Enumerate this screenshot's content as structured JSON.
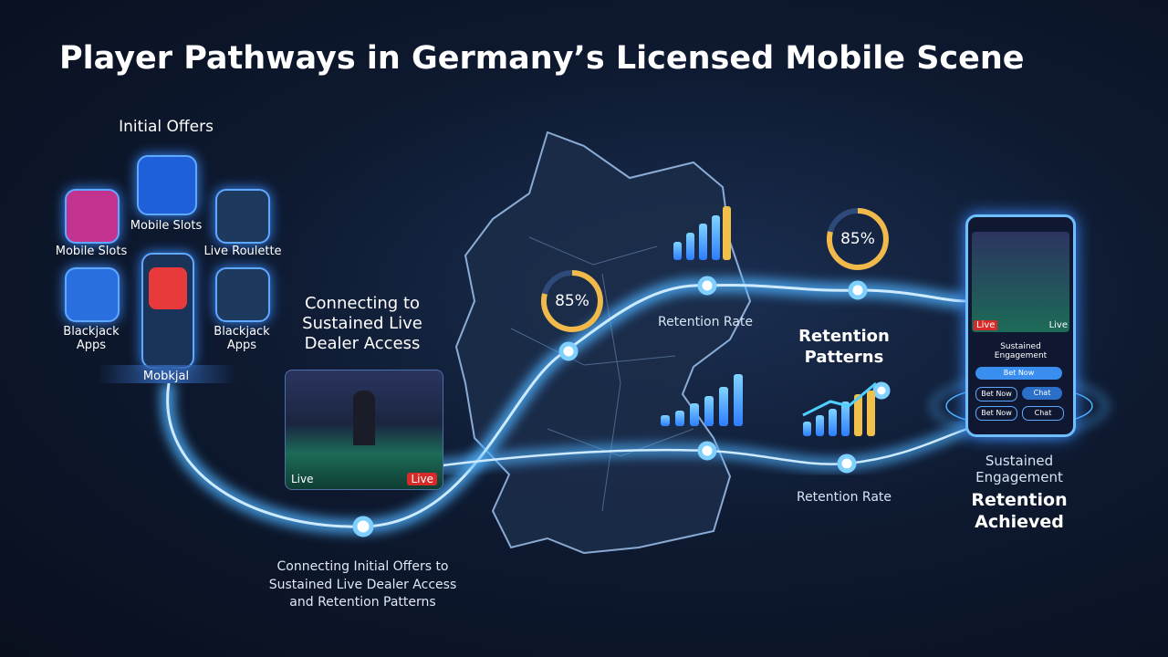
{
  "header": {
    "title": "Player Pathways in Germany’s Licensed Mobile Scene"
  },
  "initial_offers": {
    "title": "Initial Offers",
    "items": [
      "Mobile Slots",
      "Mobile Slots",
      "Live Roulette",
      "Blackjack Apps",
      "Blackjack Apps"
    ],
    "phone_label": "Mobkjal"
  },
  "live_dealer": {
    "heading": "Connecting to Sustained Live Dealer Access",
    "badges": [
      "Live",
      "Live"
    ]
  },
  "retention": {
    "rings": [
      "85%",
      "85%"
    ],
    "rate_labels": [
      "Retention Rate",
      "Retention Rate"
    ],
    "patterns_title": "Retention Patterns"
  },
  "end_phone": {
    "badges": [
      "Live",
      "Live"
    ],
    "screen_title": "Sustained Engagement",
    "buttons": [
      "Bet Now",
      "Bet Now",
      "Chat",
      "Bet Now",
      "Chat"
    ]
  },
  "outcome": {
    "subtitle": "Sustained Engagement",
    "title": "Retention Achieved"
  },
  "caption": "Connecting Initial Offers to Sustained Live Dealer Access and Retention Patterns"
}
